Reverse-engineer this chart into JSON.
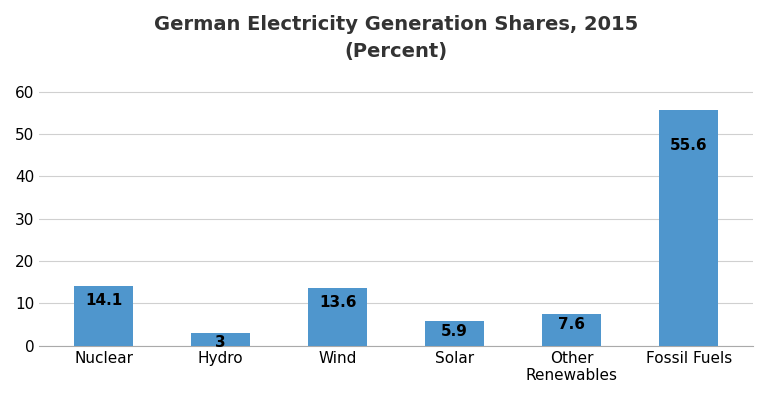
{
  "title_line1": "German Electricity Generation Shares, 2015",
  "title_line2": "(Percent)",
  "categories": [
    "Nuclear",
    "Hydro",
    "Wind",
    "Solar",
    "Other\nRenewables",
    "Fossil Fuels"
  ],
  "values": [
    14.1,
    3,
    13.6,
    5.9,
    7.6,
    55.6
  ],
  "labels": [
    "14.1",
    "3",
    "13.6",
    "5.9",
    "7.6",
    "55.6"
  ],
  "bar_color": "#4F96CD",
  "background_color": "#ffffff",
  "ylim": [
    0,
    65
  ],
  "yticks": [
    0,
    10,
    20,
    30,
    40,
    50,
    60
  ],
  "grid_color": "#d0d0d0",
  "title_fontsize": 14,
  "tick_fontsize": 11,
  "value_fontsize": 11,
  "bar_width": 0.5
}
